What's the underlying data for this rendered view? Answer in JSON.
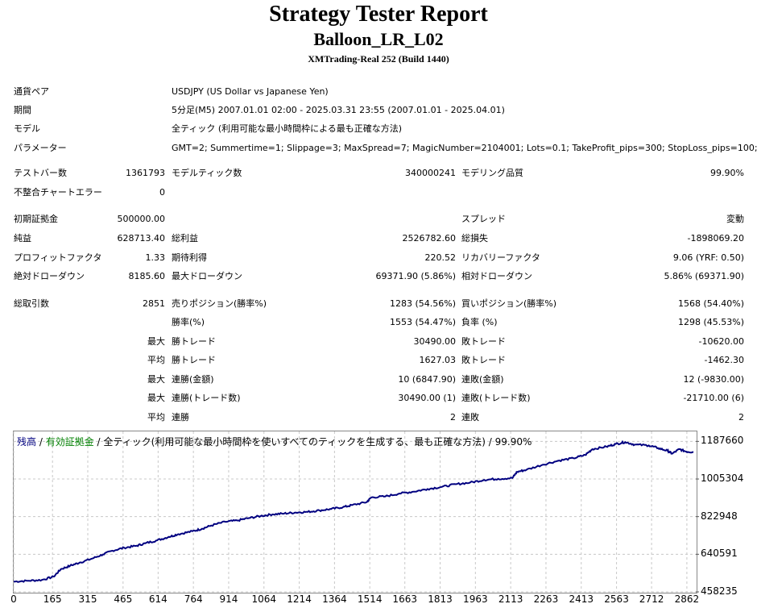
{
  "header": {
    "title": "Strategy Tester Report",
    "ea_name": "Balloon_LR_L02",
    "server": "XMTrading-Real 252 (Build 1440)"
  },
  "info": {
    "symbol_label": "通貨ペア",
    "symbol_value": "USDJPY (US Dollar vs Japanese Yen)",
    "period_label": "期間",
    "period_value": "5分足(M5) 2007.01.01 02:00 - 2025.03.31 23:55 (2007.01.01 - 2025.04.01)",
    "model_label": "モデル",
    "model_value": "全ティック (利用可能な最小時間枠による最も正確な方法)",
    "params_label": "パラメーター",
    "params_value": "GMT=2; Summertime=1; Slippage=3; MaxSpread=7; MagicNumber=2104001; Lots=0.1; TakeProfit_pips=300; StopLoss_pips=100;"
  },
  "stats": {
    "bars_label": "テストバー数",
    "bars_value": "1361793",
    "ticks_label": "モデルティック数",
    "ticks_value": "340000241",
    "quality_label": "モデリング品質",
    "quality_value": "99.90%",
    "mismatch_label": "不整合チャートエラー",
    "mismatch_value": "0",
    "deposit_label": "初期証拠金",
    "deposit_value": "500000.00",
    "spread_label": "スプレッド",
    "spread_value": "変動",
    "net_label": "純益",
    "net_value": "628713.40",
    "gross_profit_label": "総利益",
    "gross_profit_value": "2526782.60",
    "gross_loss_label": "総損失",
    "gross_loss_value": "-1898069.20",
    "pf_label": "プロフィットファクタ",
    "pf_value": "1.33",
    "expected_label": "期待利得",
    "expected_value": "220.52",
    "recovery_label": "リカバリーファクタ",
    "recovery_value": "9.06 (YRF: 0.50)",
    "abs_dd_label": "絶対ドローダウン",
    "abs_dd_value": "8185.60",
    "max_dd_label": "最大ドローダウン",
    "max_dd_value": "69371.90 (5.86%)",
    "rel_dd_label": "相対ドローダウン",
    "rel_dd_value": "5.86% (69371.90)",
    "trades_label": "総取引数",
    "trades_value": "2851",
    "short_label": "売りポジション(勝率%)",
    "short_value": "1283 (54.56%)",
    "long_label": "買いポジション(勝率%)",
    "long_value": "1568 (54.40%)",
    "winrate_label": "勝率(%)",
    "winrate_value": "1553 (54.47%)",
    "lossrate_label": "負率 (%)",
    "lossrate_value": "1298 (45.53%)",
    "max_label": "最大",
    "avg_label": "平均",
    "max_win_label": "勝トレード",
    "max_win_value": "30490.00",
    "max_loss_label": "敗トレード",
    "max_loss_value": "-10620.00",
    "avg_win_label": "勝トレード",
    "avg_win_value": "1627.03",
    "avg_loss_label": "敗トレード",
    "avg_loss_value": "-1462.30",
    "cons_win_amt_label": "連勝(金額)",
    "cons_win_amt_value": "10 (6847.90)",
    "cons_loss_amt_label": "連敗(金額)",
    "cons_loss_amt_value": "12 (-9830.00)",
    "cons_win_cnt_label": "連勝(トレード数)",
    "cons_win_cnt_value": "30490.00 (1)",
    "cons_loss_cnt_label": "連敗(トレード数)",
    "cons_loss_cnt_value": "-21710.00 (6)",
    "avg_cons_win_label": "連勝",
    "avg_cons_win_value": "2",
    "avg_cons_loss_label": "連敗",
    "avg_cons_loss_value": "2"
  },
  "chart_legend": {
    "balance": "残高",
    "sep1": " / ",
    "equity": "有効証拠金",
    "rest": " / 全ティック(利用可能な最小時間枠を使いすべてのティックを生成する、最も正確な方法) / 99.90%"
  },
  "chart_data": {
    "type": "line",
    "grid": true,
    "x_ticks": [
      0,
      165,
      315,
      465,
      614,
      764,
      914,
      1064,
      1214,
      1364,
      1514,
      1663,
      1813,
      1963,
      2113,
      2263,
      2413,
      2563,
      2712,
      2862
    ],
    "y_ticks": [
      458235,
      640591,
      822948,
      1005304,
      1187660
    ],
    "xlim": [
      0,
      2900
    ],
    "ylim": [
      458235,
      1236000
    ],
    "series": [
      {
        "color": "#000080",
        "x": [
          0,
          60,
          120,
          170,
          200,
          240,
          280,
          330,
          380,
          420,
          470,
          520,
          560,
          610,
          660,
          700,
          760,
          800,
          840,
          900,
          950,
          1000,
          1050,
          1100,
          1150,
          1200,
          1250,
          1300,
          1350,
          1400,
          1440,
          1500,
          1520,
          1580,
          1640,
          1700,
          1760,
          1820,
          1880,
          1940,
          2000,
          2060,
          2120,
          2140,
          2180,
          2250,
          2320,
          2380,
          2430,
          2460,
          2520,
          2560,
          2600,
          2640,
          2700,
          2740,
          2780,
          2800,
          2830,
          2860,
          2890
        ],
        "y": [
          508000,
          512000,
          516000,
          532000,
          568000,
          585000,
          600000,
          618000,
          640000,
          658000,
          672000,
          681000,
          694000,
          708000,
          725000,
          738000,
          752000,
          764000,
          780000,
          798000,
          804000,
          816000,
          826000,
          834000,
          838000,
          843000,
          846000,
          853000,
          860000,
          869000,
          879000,
          893000,
          916000,
          921000,
          935000,
          944000,
          957000,
          967000,
          980000,
          988000,
          1001000,
          1006000,
          1010000,
          1040000,
          1050000,
          1075000,
          1095000,
          1106000,
          1122000,
          1150000,
          1162000,
          1175000,
          1184000,
          1172000,
          1168000,
          1155000,
          1142000,
          1128000,
          1150000,
          1138000,
          1136000
        ]
      }
    ]
  }
}
